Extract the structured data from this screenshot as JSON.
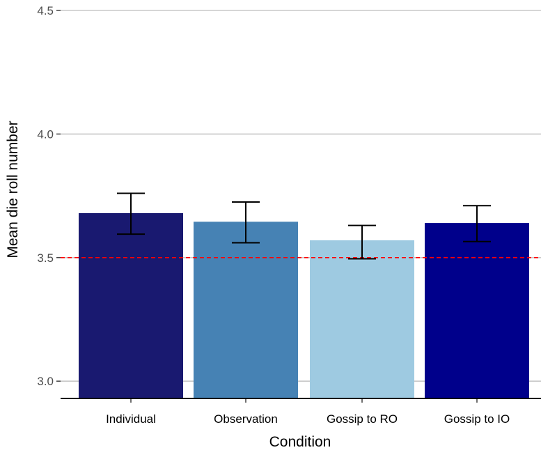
{
  "chart_data": {
    "type": "bar",
    "xlabel": "Condition",
    "ylabel": "Mean die roll number",
    "ylim": [
      2.93,
      4.5
    ],
    "yticks": [
      3.0,
      3.5,
      4.0,
      4.5
    ],
    "ytick_labels": [
      "3.0",
      "3.5",
      "4.0",
      "4.5"
    ],
    "categories": [
      "Individual",
      "Observation",
      "Gossip to RO",
      "Gossip to IO"
    ],
    "values": [
      3.68,
      3.645,
      3.57,
      3.64
    ],
    "error_low": [
      3.595,
      3.56,
      3.495,
      3.565
    ],
    "error_high": [
      3.76,
      3.725,
      3.63,
      3.71
    ],
    "bar_colors": [
      "#191970",
      "#4682B4",
      "#9ECAE1",
      "#00008B"
    ],
    "reference_line": {
      "value": 3.5,
      "color": "#FF0000",
      "style": "dashed"
    },
    "grid": "horizontal-major",
    "legend": "none"
  }
}
